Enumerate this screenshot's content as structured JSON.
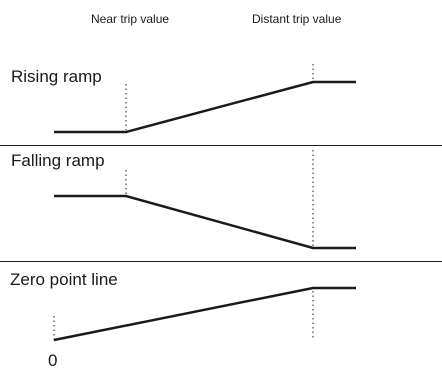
{
  "columns": {
    "near": "Near trip value",
    "distant": "Distant trip value"
  },
  "sections": {
    "rising": "Rising ramp",
    "falling": "Falling ramp",
    "zero": "Zero point line"
  },
  "zero_label": "0"
}
